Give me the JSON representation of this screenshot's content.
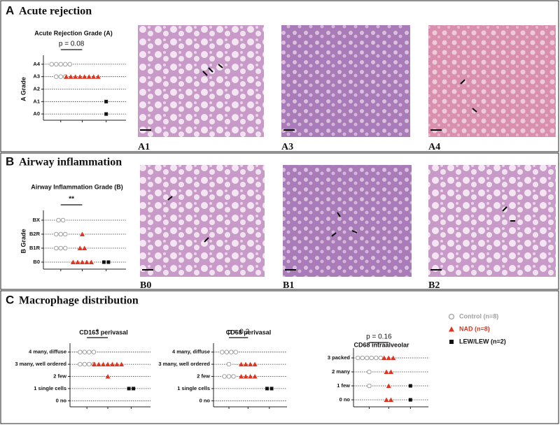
{
  "panels": [
    {
      "letter": "A",
      "heading": "Acute rejection",
      "images": [
        "A1",
        "A3",
        "A4"
      ]
    },
    {
      "letter": "B",
      "heading": "Airway inflammation",
      "images": [
        "B0",
        "B1",
        "B2"
      ]
    },
    {
      "letter": "C",
      "heading": "Macrophage distribution"
    }
  ],
  "groups": [
    {
      "name": "Control (n=8)",
      "color": "#a0a0a0",
      "marker": "circle"
    },
    {
      "name": "NAD (n=8)",
      "color": "#e0341e",
      "marker": "triangle"
    },
    {
      "name": "LEW/LEW (n=2)",
      "color": "#111111",
      "marker": "square"
    }
  ],
  "chart_data": [
    {
      "type": "dot",
      "title": "Acute Rejection Grade (A)",
      "y_label": "A Grade",
      "annotation": "p = 0.08",
      "grid": true,
      "ylim": [
        -0.5,
        4.5
      ],
      "yticks": [
        {
          "value": 0,
          "label": "A0"
        },
        {
          "value": 1,
          "label": "A1"
        },
        {
          "value": 2,
          "label": "A2"
        },
        {
          "value": 3,
          "label": "A3"
        },
        {
          "value": 4,
          "label": "A4"
        }
      ],
      "series": [
        {
          "values": [
            4,
            4,
            4,
            4,
            4,
            3,
            3,
            3
          ]
        },
        {
          "values": [
            3,
            3,
            3,
            3,
            3,
            3,
            3,
            3
          ]
        },
        {
          "values": [
            1,
            0
          ]
        }
      ]
    },
    {
      "type": "dot",
      "title": "Airway Inflammation Grade (B)",
      "y_label": "B Grade",
      "annotation": "**",
      "grid": true,
      "ylim": [
        -0.5,
        3.5
      ],
      "yticks": [
        {
          "value": 0,
          "label": "B0"
        },
        {
          "value": 1,
          "label": "B1R"
        },
        {
          "value": 2,
          "label": "B2R"
        },
        {
          "value": 3,
          "label": "BX"
        }
      ],
      "series": [
        {
          "values": [
            3,
            3,
            2,
            2,
            2,
            1,
            1,
            1
          ]
        },
        {
          "values": [
            2,
            1,
            1,
            0,
            0,
            0,
            0,
            0
          ]
        },
        {
          "values": [
            0,
            0
          ]
        }
      ]
    },
    {
      "type": "dot",
      "title": "CD163 perivasal",
      "annotation": "*",
      "grid": true,
      "ylim": [
        -0.5,
        4.5
      ],
      "yticks": [
        {
          "value": 0,
          "label": "0 no"
        },
        {
          "value": 1,
          "label": "1 single cells"
        },
        {
          "value": 2,
          "label": "2 few"
        },
        {
          "value": 3,
          "label": "3 many, well ordered"
        },
        {
          "value": 4,
          "label": "4 many, diffuse"
        }
      ],
      "series": [
        {
          "values": [
            4,
            4,
            4,
            4,
            3,
            3,
            3,
            3
          ]
        },
        {
          "values": [
            3,
            3,
            3,
            3,
            3,
            3,
            3,
            2
          ]
        },
        {
          "values": [
            1,
            1
          ]
        }
      ]
    },
    {
      "type": "dot",
      "title": "CD68 perivasal",
      "annotation": "p = 0.2",
      "grid": true,
      "ylim": [
        -0.5,
        4.5
      ],
      "yticks": [
        {
          "value": 0,
          "label": "0 no"
        },
        {
          "value": 1,
          "label": "1 single cells"
        },
        {
          "value": 2,
          "label": "2 few"
        },
        {
          "value": 3,
          "label": "3 many, well ordered"
        },
        {
          "value": 4,
          "label": "4 many, diffuse"
        }
      ],
      "series": [
        {
          "values": [
            4,
            4,
            4,
            4,
            3,
            2,
            2,
            2
          ]
        },
        {
          "values": [
            3,
            3,
            3,
            3,
            2,
            2,
            2,
            2
          ]
        },
        {
          "values": [
            1,
            1
          ]
        }
      ]
    },
    {
      "type": "dot",
      "title": "CD68 intraalveolar",
      "annotation": "p = 0.16",
      "grid": true,
      "ylim": [
        -0.5,
        3.5
      ],
      "yticks": [
        {
          "value": 0,
          "label": "0 no"
        },
        {
          "value": 1,
          "label": "1 few"
        },
        {
          "value": 2,
          "label": "2 many"
        },
        {
          "value": 3,
          "label": "3 packed"
        }
      ],
      "series": [
        {
          "values": [
            3,
            3,
            3,
            3,
            3,
            3,
            2,
            1
          ]
        },
        {
          "values": [
            3,
            3,
            3,
            2,
            2,
            1,
            0,
            0
          ]
        },
        {
          "values": [
            1,
            0
          ]
        }
      ]
    }
  ]
}
